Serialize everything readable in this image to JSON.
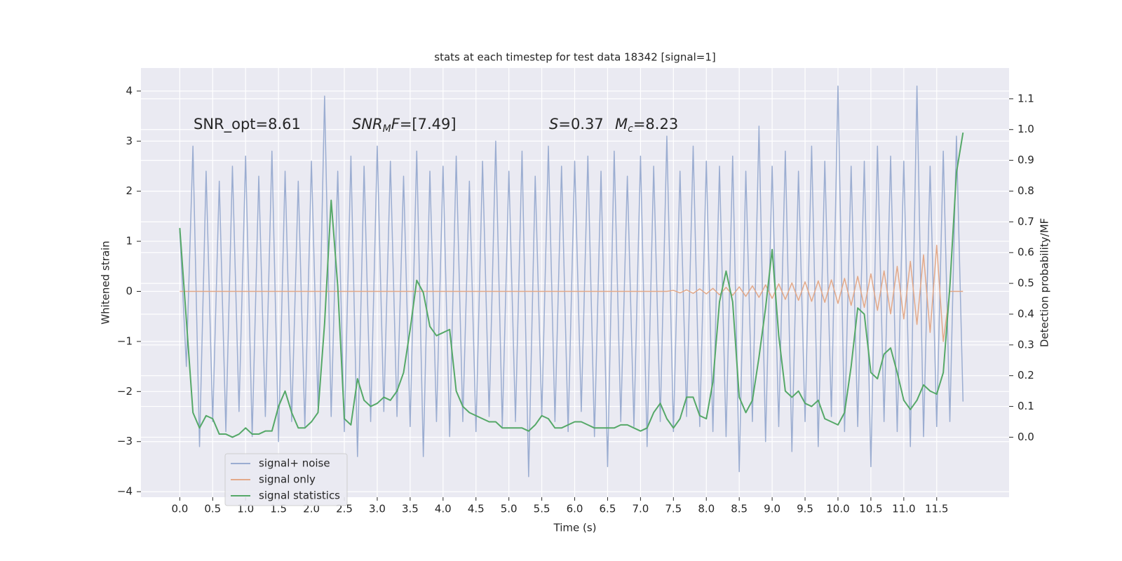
{
  "chart_data": {
    "type": "line",
    "title": "stats at each timestep for test data 18342 [signal=1]",
    "xlabel": "Time (s)",
    "ylabel": "Whitened strain",
    "y2label": "Detection probability/MF",
    "annotations": [
      [
        "SNR_opt=8.61"
      ],
      [
        "SNR",
        "M",
        "F",
        "=[7.49]"
      ],
      [
        "S",
        "=0.37"
      ],
      [
        "M",
        "c",
        "=8.23"
      ]
    ],
    "xlim": [
      -0.59,
      12.6
    ],
    "ylim": [
      -4.11,
      4.46
    ],
    "y2lim": [
      -0.195,
      1.2
    ],
    "xticks": [
      {
        "value": 0,
        "label": "0.0"
      },
      0.5,
      {
        "value": 1,
        "label": "1.0"
      },
      1.5,
      {
        "value": 2,
        "label": "2.0"
      },
      2.5,
      {
        "value": 3,
        "label": "3.0"
      },
      3.5,
      {
        "value": 4,
        "label": "4.0"
      },
      4.5,
      {
        "value": 5,
        "label": "5.0"
      },
      5.5,
      {
        "value": 6,
        "label": "6.0"
      },
      6.5,
      {
        "value": 7,
        "label": "7.0"
      },
      7.5,
      {
        "value": 8,
        "label": "8.0"
      },
      8.5,
      {
        "value": 9,
        "label": "9.0"
      },
      9.5,
      {
        "value": 10,
        "label": "10.0"
      },
      10.5,
      {
        "value": 11,
        "label": "11.0"
      },
      11.5
    ],
    "yticks": [
      {
        "value": -4,
        "label": "−4"
      },
      {
        "value": -3,
        "label": "−3"
      },
      {
        "value": -2,
        "label": "−2"
      },
      {
        "value": -1,
        "label": "−1"
      },
      0,
      1,
      2,
      3,
      4
    ],
    "y2ticks": [
      {
        "value": 0,
        "label": "0.0"
      },
      0.1,
      0.2,
      0.3,
      0.4,
      0.5,
      0.6,
      0.7,
      0.8,
      0.9,
      {
        "value": 1,
        "label": "1.0"
      },
      1.1
    ],
    "grid": true,
    "legend": "lower left",
    "x": [
      0,
      0.1,
      0.2,
      0.3,
      0.4,
      0.5,
      0.6,
      0.7,
      0.8,
      0.9,
      1,
      1.1,
      1.2,
      1.3,
      1.4,
      1.5,
      1.6,
      1.7,
      1.8,
      1.9,
      2,
      2.1,
      2.2,
      2.3,
      2.4,
      2.5,
      2.6,
      2.7,
      2.8,
      2.9,
      3,
      3.1,
      3.2,
      3.3,
      3.4,
      3.5,
      3.6,
      3.7,
      3.8,
      3.9,
      4,
      4.1,
      4.2,
      4.3,
      4.4,
      4.5,
      4.6,
      4.7,
      4.8,
      4.9,
      5,
      5.1,
      5.2,
      5.3,
      5.4,
      5.5,
      5.6,
      5.7,
      5.8,
      5.9,
      6,
      6.1,
      6.2,
      6.3,
      6.4,
      6.5,
      6.6,
      6.7,
      6.8,
      6.9,
      7,
      7.1,
      7.2,
      7.3,
      7.4,
      7.5,
      7.6,
      7.7,
      7.8,
      7.9,
      8,
      8.1,
      8.2,
      8.3,
      8.4,
      8.5,
      8.6,
      8.7,
      8.8,
      8.9,
      9,
      9.1,
      9.2,
      9.3,
      9.4,
      9.5,
      9.6,
      9.7,
      9.8,
      9.9,
      10,
      10.1,
      10.2,
      10.3,
      10.4,
      10.5,
      10.6,
      10.7,
      10.8,
      10.9,
      11,
      11.1,
      11.2,
      11.3,
      11.4,
      11.5,
      11.6,
      11.7,
      11.8,
      11.9
    ],
    "series": [
      {
        "name": "signal+ noise",
        "color": "#9badd1",
        "values": [
          1.2,
          -1.5,
          2.9,
          -3.1,
          2.4,
          -2.6,
          2.2,
          -2.8,
          2.5,
          -2.4,
          2.7,
          -2.9,
          2.3,
          -2.5,
          2.8,
          -3.0,
          2.4,
          -2.6,
          2.2,
          -2.7,
          2.6,
          -2.3,
          3.9,
          -2.5,
          2.4,
          -2.8,
          2.7,
          -3.3,
          2.5,
          -2.6,
          2.9,
          -2.4,
          2.6,
          -2.5,
          2.3,
          -2.7,
          2.8,
          -3.3,
          2.4,
          -2.6,
          2.5,
          -2.9,
          2.7,
          -2.6,
          2.2,
          -2.8,
          2.6,
          -2.5,
          3.0,
          -2.7,
          2.4,
          -2.6,
          2.8,
          -3.7,
          2.3,
          -2.5,
          2.9,
          -2.6,
          2.5,
          -2.8,
          2.6,
          -2.4,
          2.7,
          -2.9,
          2.4,
          -3.5,
          2.8,
          -2.6,
          2.3,
          -2.7,
          2.7,
          -3.1,
          2.5,
          -2.6,
          3.1,
          -2.8,
          2.4,
          -2.5,
          2.9,
          -2.7,
          2.6,
          -2.8,
          2.5,
          -2.9,
          2.7,
          -3.6,
          2.4,
          -2.6,
          3.3,
          -3.0,
          2.5,
          -2.7,
          2.8,
          -3.2,
          2.4,
          -2.6,
          2.9,
          -3.1,
          2.6,
          -2.5,
          4.1,
          -2.8,
          2.5,
          -2.7,
          2.6,
          -3.5,
          2.9,
          -2.6,
          2.7,
          -2.8,
          2.6,
          -3.1,
          4.1,
          -2.9,
          2.5,
          -2.7,
          2.8,
          -2.6,
          3.1,
          -2.2
        ]
      },
      {
        "name": "signal only",
        "color": "#e3a989",
        "values": [
          0,
          0,
          0,
          0,
          0,
          0,
          0,
          0,
          0,
          0,
          0,
          0,
          0,
          0,
          0,
          0,
          0,
          0,
          0,
          0,
          0,
          0,
          0,
          0,
          0,
          0,
          0,
          0,
          0,
          0,
          0,
          0,
          0,
          0,
          0,
          0,
          0,
          0,
          0,
          0,
          0,
          0,
          0,
          0,
          0,
          0,
          0,
          0,
          0,
          0,
          0,
          0,
          0,
          0,
          0,
          0,
          0,
          0,
          0,
          0,
          0,
          0,
          0,
          0,
          0,
          0,
          0,
          0,
          0,
          0,
          0,
          0,
          0,
          0,
          0,
          0.02,
          -0.03,
          0.03,
          -0.04,
          0.05,
          -0.05,
          0.06,
          -0.07,
          0.08,
          -0.08,
          0.09,
          -0.1,
          0.11,
          -0.12,
          0.13,
          -0.14,
          0.15,
          -0.16,
          0.17,
          -0.18,
          0.19,
          -0.2,
          0.21,
          -0.22,
          0.23,
          -0.24,
          0.26,
          -0.28,
          0.3,
          -0.32,
          0.35,
          -0.38,
          0.41,
          -0.45,
          0.5,
          -0.55,
          0.6,
          -0.66,
          0.73,
          -0.82,
          0.92,
          -1.0,
          0,
          0,
          0
        ]
      },
      {
        "name": "signal statistics",
        "color": "#55a868",
        "axis": "y2",
        "values": [
          0.68,
          0.38,
          0.08,
          0.03,
          0.07,
          0.06,
          0.01,
          0.01,
          0.0,
          0.01,
          0.03,
          0.01,
          0.01,
          0.02,
          0.02,
          0.1,
          0.15,
          0.08,
          0.03,
          0.03,
          0.05,
          0.08,
          0.37,
          0.77,
          0.49,
          0.06,
          0.04,
          0.19,
          0.12,
          0.1,
          0.11,
          0.13,
          0.12,
          0.15,
          0.21,
          0.35,
          0.51,
          0.47,
          0.36,
          0.33,
          0.34,
          0.35,
          0.15,
          0.1,
          0.08,
          0.07,
          0.06,
          0.05,
          0.05,
          0.03,
          0.03,
          0.03,
          0.03,
          0.02,
          0.04,
          0.07,
          0.06,
          0.03,
          0.03,
          0.04,
          0.05,
          0.05,
          0.04,
          0.03,
          0.03,
          0.03,
          0.03,
          0.04,
          0.04,
          0.03,
          0.02,
          0.03,
          0.08,
          0.11,
          0.06,
          0.03,
          0.06,
          0.13,
          0.13,
          0.07,
          0.06,
          0.18,
          0.44,
          0.54,
          0.44,
          0.13,
          0.08,
          0.12,
          0.26,
          0.42,
          0.61,
          0.33,
          0.15,
          0.13,
          0.15,
          0.11,
          0.1,
          0.12,
          0.06,
          0.05,
          0.04,
          0.08,
          0.23,
          0.42,
          0.4,
          0.21,
          0.19,
          0.27,
          0.29,
          0.21,
          0.12,
          0.09,
          0.12,
          0.17,
          0.15,
          0.14,
          0.21,
          0.49,
          0.86,
          0.99
        ]
      }
    ]
  }
}
